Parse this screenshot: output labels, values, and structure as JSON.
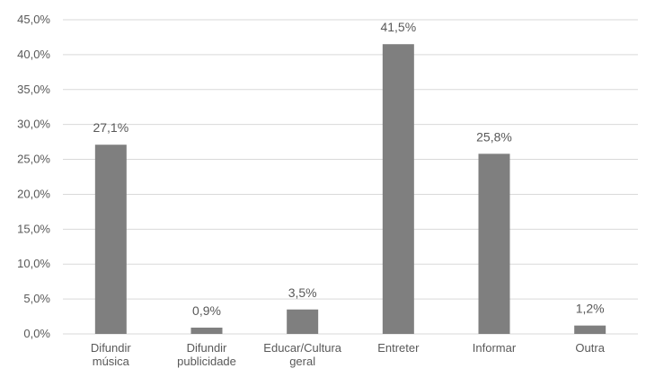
{
  "colors": {
    "bar": "#7f7f7f",
    "grid": "#d9d9d9",
    "axis": "#d9d9d9",
    "text": "#595959",
    "background": "#ffffff"
  },
  "chart_data": {
    "type": "bar",
    "title": "",
    "xlabel": "",
    "ylabel": "",
    "ylim": [
      0,
      45
    ],
    "ytick_step": 5,
    "yticks": [
      "0,0%",
      "5,0%",
      "10,0%",
      "15,0%",
      "20,0%",
      "25,0%",
      "30,0%",
      "35,0%",
      "40,0%",
      "45,0%"
    ],
    "grid": true,
    "legend": "none",
    "categories": [
      [
        "Difundir",
        "música"
      ],
      [
        "Difundir",
        "publicidade"
      ],
      [
        "Educar/Cultura",
        "geral"
      ],
      [
        "Entreter"
      ],
      [
        "Informar"
      ],
      [
        "Outra"
      ]
    ],
    "values": [
      27.1,
      0.9,
      3.5,
      41.5,
      25.8,
      1.2
    ],
    "data_labels": [
      "27,1%",
      "0,9%",
      "3,5%",
      "41,5%",
      "25,8%",
      "1,2%"
    ]
  }
}
